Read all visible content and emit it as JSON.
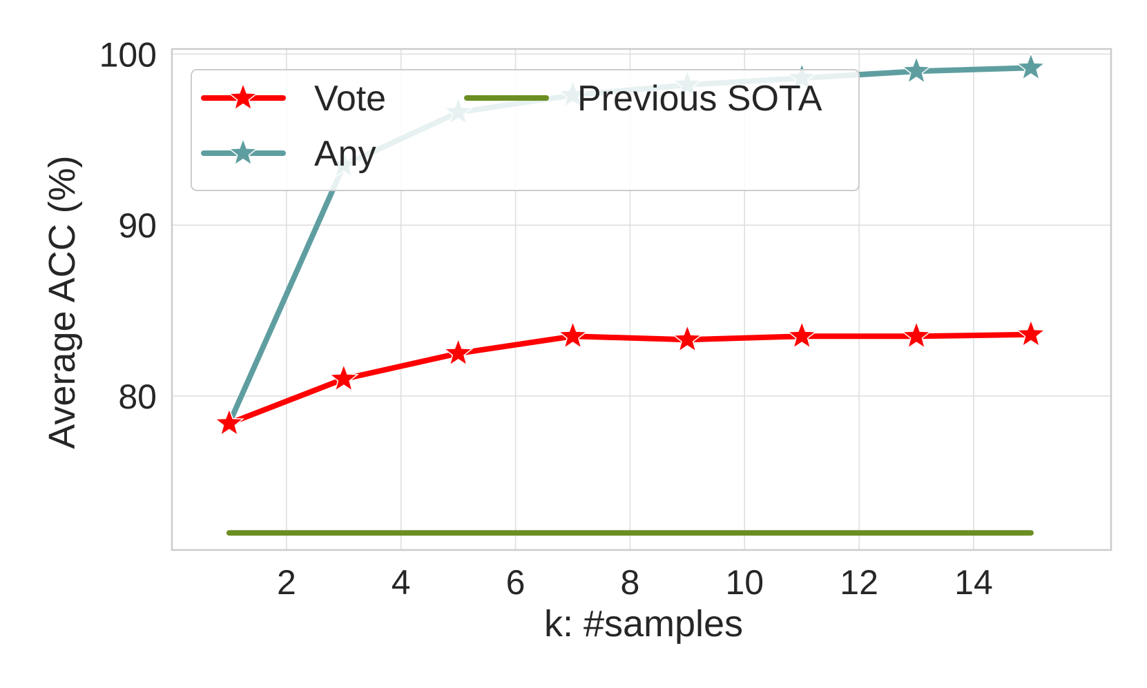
{
  "chart_data": {
    "type": "line",
    "title": "",
    "xlabel": "k: #samples",
    "ylabel": "Average ACC (%)",
    "xlim": [
      0.0,
      16.4
    ],
    "ylim": [
      71.0,
      100.3
    ],
    "xticks": [
      2,
      4,
      6,
      8,
      10,
      12,
      14
    ],
    "yticks": [
      80,
      90,
      100
    ],
    "grid": true,
    "legend_position": "top-left",
    "legend_columns": 2,
    "series": [
      {
        "name": "Vote",
        "color": "#ff0000",
        "marker": "star",
        "x": [
          1,
          3,
          5,
          7,
          9,
          11,
          13,
          15
        ],
        "y": [
          78.4,
          81.0,
          82.5,
          83.5,
          83.3,
          83.5,
          83.5,
          83.6
        ]
      },
      {
        "name": "Any",
        "color": "#5f9ea0",
        "marker": "star",
        "x": [
          1,
          3,
          5,
          7,
          9,
          11,
          13,
          15
        ],
        "y": [
          78.4,
          93.5,
          96.6,
          97.6,
          98.2,
          98.6,
          99.0,
          99.2
        ]
      },
      {
        "name": "Previous SOTA",
        "color": "#6b8e23",
        "marker": "none",
        "x": [
          1,
          15
        ],
        "y": [
          72.0,
          72.0
        ]
      }
    ]
  }
}
